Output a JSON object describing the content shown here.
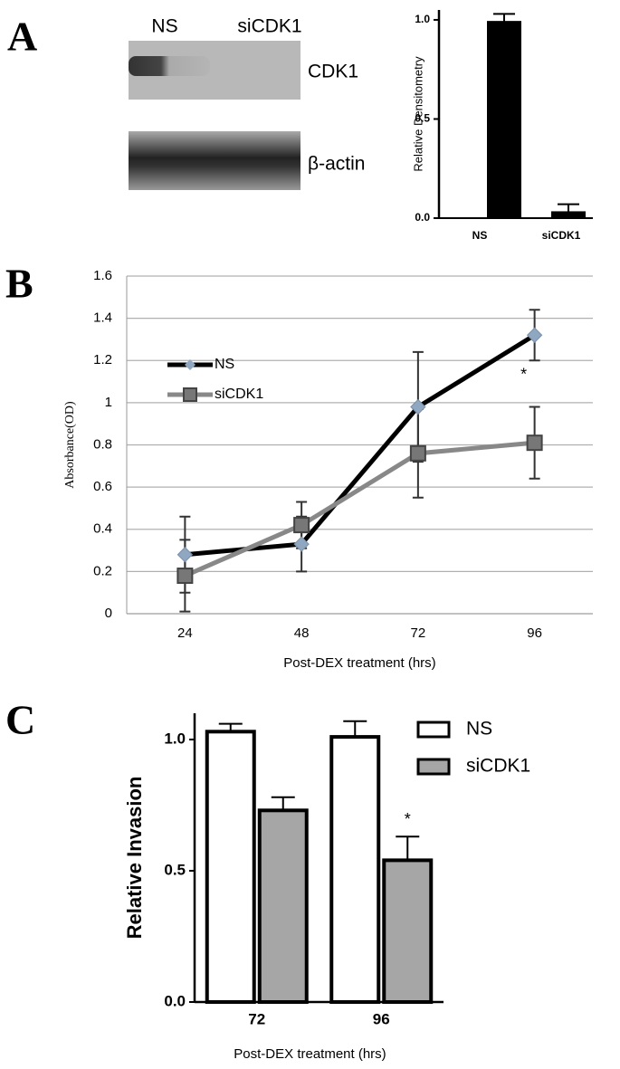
{
  "panels": [
    "A",
    "B",
    "C"
  ],
  "blot": {
    "lanes": [
      "NS",
      "siCDK1"
    ],
    "rows": [
      "CDK1",
      "β-actin"
    ]
  },
  "chart_data": [
    {
      "type": "bar",
      "categories": [
        "NS",
        "siCDK1"
      ],
      "values": [
        0.99,
        0.03
      ],
      "errors": [
        0.04,
        0.04
      ],
      "color": "#000000",
      "y_label": "Relative Densitometry",
      "ylim": [
        0,
        1.05
      ],
      "yticks": [
        {
          "value": 0,
          "label": "0.0"
        },
        {
          "value": 0.5,
          "label": "0.5"
        },
        {
          "value": 1,
          "label": "1.0"
        }
      ],
      "grid": false
    },
    {
      "type": "line",
      "categories": [
        "24",
        "48",
        "72",
        "96"
      ],
      "series": [
        {
          "name": "NS",
          "color": "#000000",
          "marker_color": "#8fa7c0",
          "values": [
            0.28,
            0.33,
            0.98,
            1.32
          ],
          "errors": [
            0.18,
            0.13,
            0.26,
            0.12
          ]
        },
        {
          "name": "siCDK1",
          "color": "#888888",
          "marker_color": "#777777",
          "values": [
            0.18,
            0.42,
            0.76,
            0.81
          ],
          "errors": [
            0.17,
            0.11,
            0.21,
            0.17
          ]
        }
      ],
      "x_label": "Post-DEX treatment (hrs)",
      "y_label": "Absorbance(OD)",
      "annotation": "*",
      "ylim": [
        0,
        1.6
      ],
      "yticks": [
        0,
        0.2,
        0.4,
        0.6,
        0.8,
        1,
        1.2,
        1.4,
        1.6
      ],
      "grid": true,
      "legend": "upper-left"
    },
    {
      "type": "grouped-bar",
      "categories": [
        "72",
        "96"
      ],
      "series": [
        {
          "name": "NS",
          "color": "#ffffff",
          "values": [
            1.03,
            1.01
          ],
          "errors": [
            0.03,
            0.06
          ]
        },
        {
          "name": "siCDK1",
          "color": "#a6a6a6",
          "values": [
            0.73,
            0.54
          ],
          "errors": [
            0.05,
            0.09
          ]
        }
      ],
      "x_label": "Post-DEX treatment (hrs)",
      "y_label": "Relative Invasion",
      "annotation": "*",
      "ylim": [
        0,
        1.1
      ],
      "yticks": [
        {
          "value": 0,
          "label": "0.0"
        },
        {
          "value": 0.5,
          "label": "0.5"
        },
        {
          "value": 1,
          "label": "1.0"
        }
      ],
      "grid": false,
      "legend": "upper-right"
    }
  ]
}
